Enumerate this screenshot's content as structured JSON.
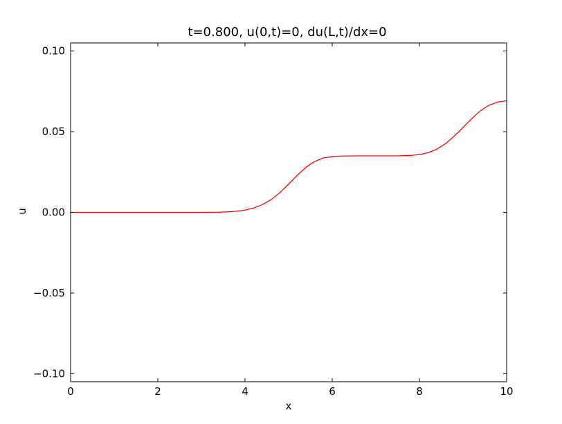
{
  "chart_data": {
    "type": "line",
    "title": "t=0.800, u(0,t)=0, du(L,t)/dx=0",
    "xlabel": "x",
    "ylabel": "u",
    "xlim": [
      0,
      10
    ],
    "ylim": [
      -0.105,
      0.105
    ],
    "grid": false,
    "legend": "none",
    "xticks": [
      {
        "value": 0,
        "label": "0"
      },
      {
        "value": 2,
        "label": "2"
      },
      {
        "value": 4,
        "label": "4"
      },
      {
        "value": 6,
        "label": "6"
      },
      {
        "value": 8,
        "label": "8"
      },
      {
        "value": 10,
        "label": "10"
      }
    ],
    "yticks": [
      {
        "value": 0.1,
        "label": "0.10"
      },
      {
        "value": 0.05,
        "label": "0.05"
      },
      {
        "value": 0.0,
        "label": "0.00"
      },
      {
        "value": -0.05,
        "label": "−0.05"
      },
      {
        "value": -0.1,
        "label": "−0.10"
      }
    ],
    "series": [
      {
        "color": "#ff0000",
        "x": [
          0,
          0.5,
          1,
          1.5,
          2,
          2.5,
          3,
          3.4,
          3.6,
          3.8,
          4.0,
          4.2,
          4.4,
          4.6,
          4.8,
          5.0,
          5.2,
          5.4,
          5.6,
          5.8,
          6.0,
          6.2,
          6.5,
          7.0,
          7.5,
          7.8,
          8.0,
          8.2,
          8.4,
          8.6,
          8.8,
          9.0,
          9.2,
          9.4,
          9.6,
          9.8,
          10.0
        ],
        "y": [
          0,
          0,
          0,
          0,
          0,
          0,
          0,
          0.0001,
          0.0003,
          0.0007,
          0.0014,
          0.0027,
          0.0048,
          0.0079,
          0.0122,
          0.0175,
          0.0231,
          0.028,
          0.0316,
          0.0337,
          0.0346,
          0.0349,
          0.035,
          0.035,
          0.035,
          0.0353,
          0.0358,
          0.037,
          0.0392,
          0.0426,
          0.0473,
          0.0526,
          0.0581,
          0.063,
          0.0664,
          0.0684,
          0.0692
        ]
      }
    ]
  }
}
